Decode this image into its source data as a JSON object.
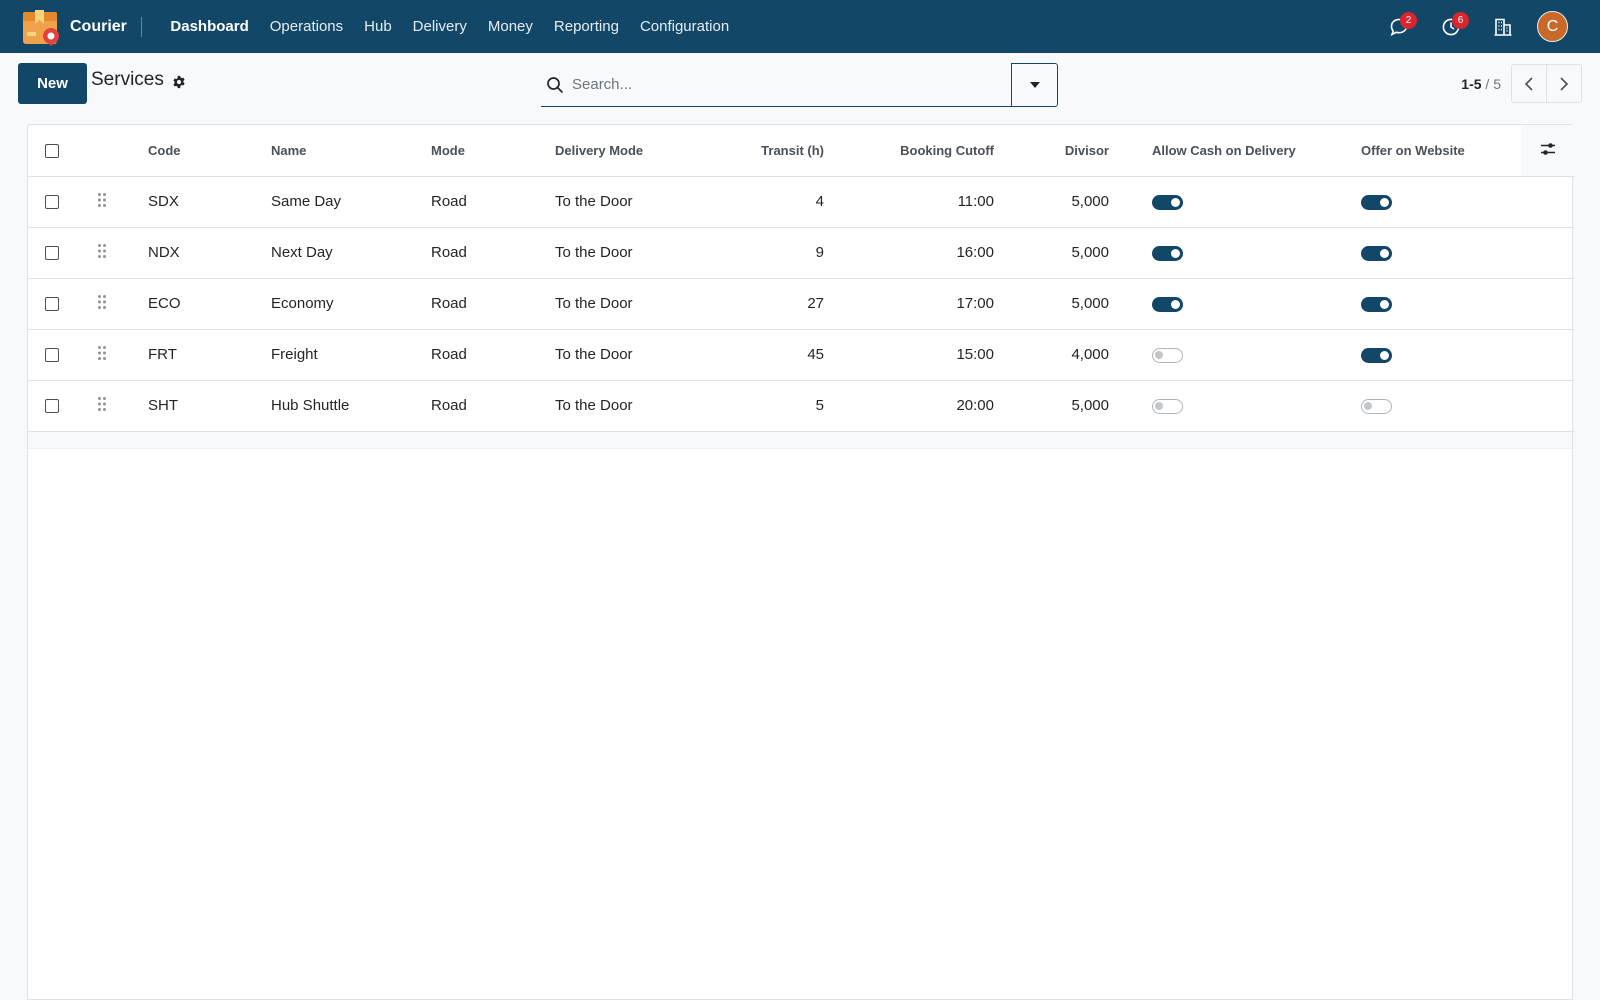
{
  "navbar": {
    "app_name": "Courier",
    "menu": [
      "Dashboard",
      "Operations",
      "Hub",
      "Delivery",
      "Money",
      "Reporting",
      "Configuration"
    ],
    "active_menu": "Dashboard",
    "messages_count": "2",
    "activities_count": "6",
    "avatar_initial": "C"
  },
  "control": {
    "new_label": "New",
    "title": "Services",
    "search_placeholder": "Search...",
    "pager_value": "1-5",
    "pager_sep": " / ",
    "pager_limit": "5"
  },
  "list": {
    "columns": {
      "code": "Code",
      "name": "Name",
      "mode": "Mode",
      "delivery_mode": "Delivery Mode",
      "transit": "Transit (h)",
      "cutoff": "Booking Cutoff",
      "divisor": "Divisor",
      "cod": "Allow Cash on Delivery",
      "website": "Offer on Website"
    },
    "rows": [
      {
        "code": "SDX",
        "name": "Same Day",
        "mode": "Road",
        "delivery_mode": "To the Door",
        "transit": "4",
        "cutoff": "11:00",
        "divisor": "5,000",
        "cod": true,
        "website": true
      },
      {
        "code": "NDX",
        "name": "Next Day",
        "mode": "Road",
        "delivery_mode": "To the Door",
        "transit": "9",
        "cutoff": "16:00",
        "divisor": "5,000",
        "cod": true,
        "website": true
      },
      {
        "code": "ECO",
        "name": "Economy",
        "mode": "Road",
        "delivery_mode": "To the Door",
        "transit": "27",
        "cutoff": "17:00",
        "divisor": "5,000",
        "cod": true,
        "website": true
      },
      {
        "code": "FRT",
        "name": "Freight",
        "mode": "Road",
        "delivery_mode": "To the Door",
        "transit": "45",
        "cutoff": "15:00",
        "divisor": "4,000",
        "cod": false,
        "website": true
      },
      {
        "code": "SHT",
        "name": "Hub Shuttle",
        "mode": "Road",
        "delivery_mode": "To the Door",
        "transit": "5",
        "cutoff": "20:00",
        "divisor": "5,000",
        "cod": false,
        "website": false
      }
    ]
  },
  "colors": {
    "primary": "#124768",
    "badge": "#d9262e",
    "avatar": "#c8692a"
  }
}
